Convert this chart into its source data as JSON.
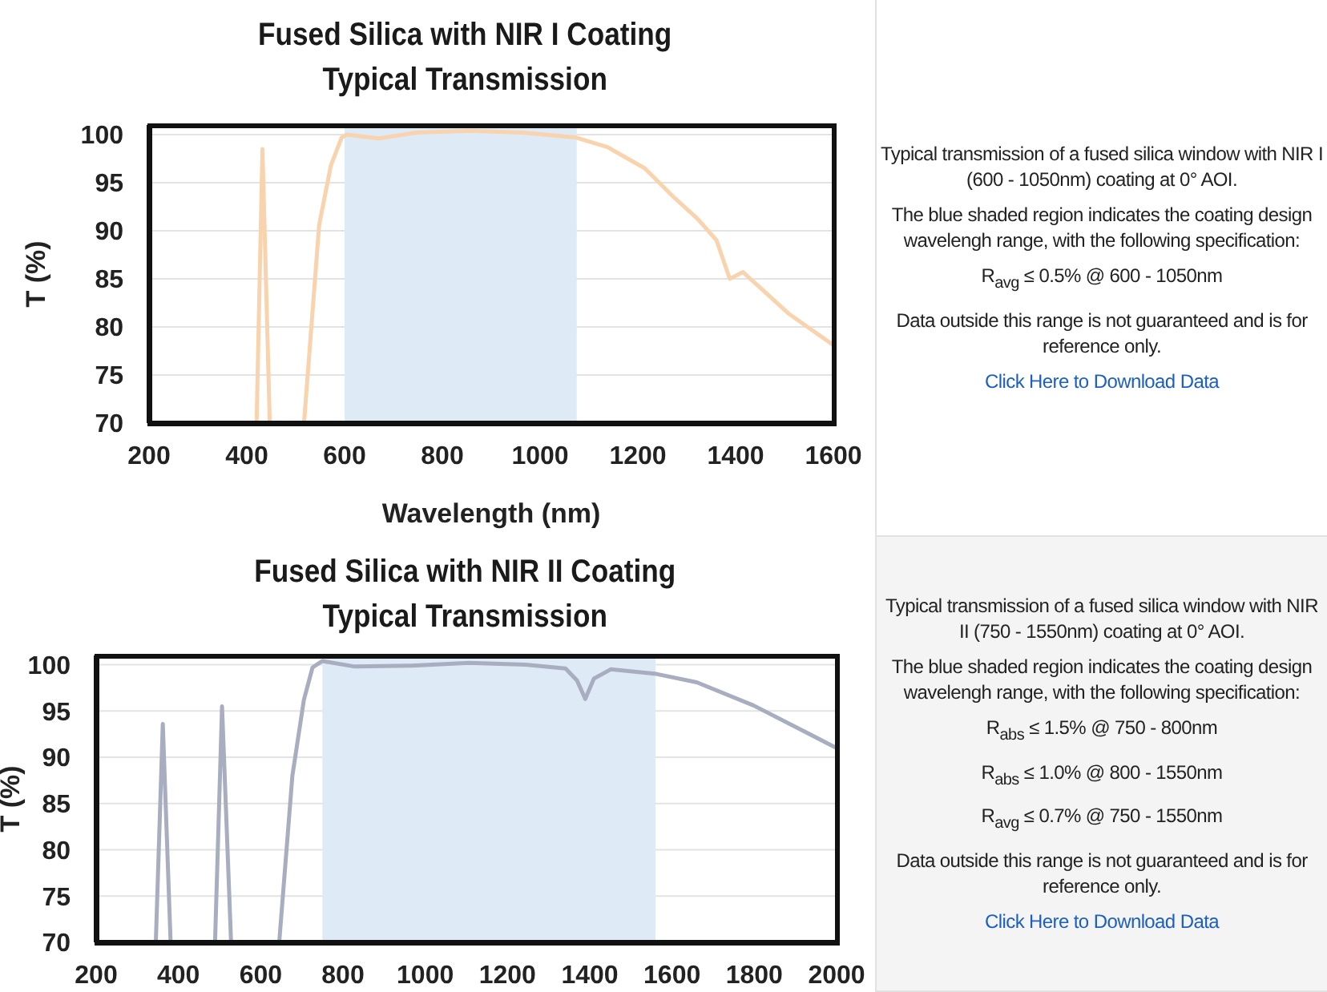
{
  "chart_data": [
    {
      "type": "line",
      "title": "Fused Silica with NIR I Coating",
      "subtitle": "Typical Transmission",
      "xlabel": "Wavelength (nm)",
      "ylabel": "T (%)",
      "series": [
        {
          "color": "#f8d3ae",
          "x": [
            420,
            432,
            447,
            480,
            517,
            548,
            572,
            594,
            605,
            670,
            746,
            855,
            964,
            1073,
            1138,
            1214,
            1269,
            1323,
            1361,
            1388,
            1415,
            1454,
            1508,
            1600
          ],
          "values": [
            70,
            98.5,
            70,
            null,
            70,
            90.6,
            96.8,
            99.7,
            100,
            99.6,
            100.2,
            100.4,
            100.2,
            99.7,
            98.7,
            96.5,
            93.7,
            91.2,
            89,
            85,
            85.7,
            83.9,
            81.4,
            78.1
          ]
        }
      ],
      "xlim": [
        200,
        1600
      ],
      "xticks": [
        200,
        400,
        600,
        800,
        1000,
        1200,
        1400,
        1600
      ],
      "ylim": [
        70,
        101
      ],
      "yticks": [
        70,
        75,
        80,
        85,
        90,
        95,
        100
      ],
      "grid": "y",
      "bands": [
        {
          "axis": "x",
          "from": 600,
          "to": 1075,
          "color": "#deeaf6"
        }
      ]
    },
    {
      "type": "other",
      "annotations": [
        "Typical transmission of a fused silica window with NIR I (600 - 1050nm) coating at 0° AOI.",
        "The blue shaded region indicates the coating design wavelengh range, with the following specification:",
        "R$_{avg}$ ≤ 0.5% @ 600 - 1050nm",
        "Data outside this range is not guaranteed and is for reference only.",
        "Click Here to Download Data"
      ]
    },
    {
      "type": "line",
      "title": "Fused Silica with NIR II Coating",
      "subtitle": "Typical Transmission",
      "ylabel": "T (%)",
      "series": [
        {
          "color": "#a8adc0",
          "x": [
            345,
            362,
            381,
            430,
            489,
            506,
            528,
            590,
            645,
            677,
            705,
            726,
            750,
            829,
            967,
            1106,
            1244,
            1341,
            1369,
            1389,
            1410,
            1451,
            1562,
            1660,
            1798,
            2000
          ],
          "values": [
            70,
            93.6,
            70,
            null,
            70,
            95.5,
            70,
            null,
            70,
            88,
            96.2,
            99.7,
            100.4,
            99.8,
            99.9,
            100.2,
            100,
            99.6,
            98.3,
            96.3,
            98.5,
            99.5,
            99,
            98.1,
            95.6,
            91
          ]
        }
      ],
      "xlim": [
        200,
        2000
      ],
      "xticks": [
        200,
        400,
        600,
        800,
        1000,
        1200,
        1400,
        1600,
        1800,
        2000
      ],
      "ylim": [
        70,
        101
      ],
      "yticks": [
        70,
        75,
        80,
        85,
        90,
        95,
        100
      ],
      "grid": "y",
      "bands": [
        {
          "axis": "x",
          "from": 750,
          "to": 1560,
          "color": "#deeaf6"
        }
      ]
    },
    {
      "type": "other",
      "annotations": [
        "Typical transmission of a fused silica window with NIR II (750 - 1550nm) coating at 0° AOI.",
        "The blue shaded region indicates the coating design wavelengh range, with the following specification:",
        "R$_{abs}$ ≤ 1.5% @ 750 - 800nm",
        "R$_{abs}$ ≤ 1.0% @ 800 - 1550nm",
        "R$_{avg}$ ≤ 0.7% @ 750 - 1550nm",
        "Data outside this range is not guaranteed and is for reference only.",
        "Click Here to Download Data"
      ]
    }
  ]
}
